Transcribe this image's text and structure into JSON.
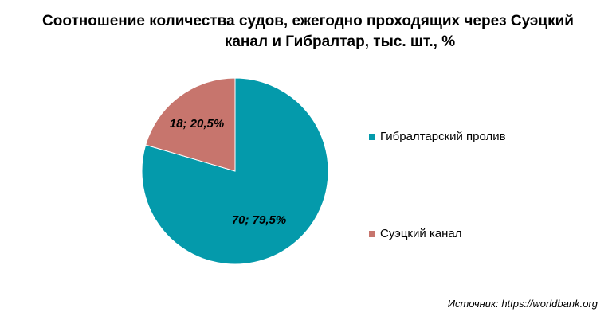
{
  "chart_data": {
    "type": "pie",
    "title_line1": "Соотношение количества судов, ежегодно проходящих через Суэцкий",
    "title_line2": "канал и Гибралтар, тыс. шт., %",
    "slices": [
      {
        "name": "Гибралтарский пролив",
        "value": 70,
        "percent": 79.5,
        "label": "70; 79,5%",
        "color": "#049aab"
      },
      {
        "name": "Суэцкий канал",
        "value": 18,
        "percent": 20.5,
        "label": "18; 20,5%",
        "color": "#c7756d"
      }
    ],
    "legend_position": "right"
  },
  "source_text": "Источник: https://worldbank.org"
}
